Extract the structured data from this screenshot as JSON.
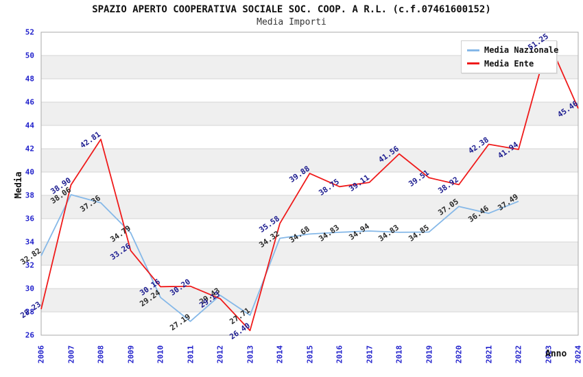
{
  "title": "SPAZIO APERTO COOPERATIVA SOCIALE SOC. COOP. A R.L. (c.f.07461600152)",
  "subtitle": "Media Importi",
  "chart_data": {
    "type": "line",
    "x": [
      2006,
      2007,
      2008,
      2009,
      2010,
      2011,
      2012,
      2013,
      2014,
      2015,
      2016,
      2017,
      2018,
      2019,
      2020,
      2021,
      2022,
      2023,
      2024
    ],
    "xlabel": "Anno",
    "ylabel": "Media",
    "ylim": [
      26,
      52
    ],
    "ytick_step": 2,
    "grid": "horizontal",
    "legend_position": "top-right",
    "series": [
      {
        "name": "Media Nazionale",
        "color": "#85b8e8",
        "label_color": "#2a2a2a",
        "values": [
          32.82,
          38.06,
          37.36,
          34.79,
          29.24,
          27.19,
          29.43,
          27.71,
          34.32,
          34.68,
          34.83,
          34.94,
          34.83,
          34.85,
          37.05,
          36.46,
          37.49,
          null,
          null
        ]
      },
      {
        "name": "Media Ente",
        "color": "#ef1a1a",
        "label_color": "#1b1b8f",
        "values": [
          28.23,
          38.9,
          42.81,
          33.26,
          30.16,
          30.2,
          29.13,
          26.4,
          35.58,
          39.88,
          38.75,
          39.11,
          41.56,
          39.51,
          38.92,
          42.38,
          41.94,
          51.25,
          45.46
        ]
      }
    ],
    "colors": {
      "axis_text": "#2222cc",
      "grid_line": "#d4d4d4",
      "band": "#efefef",
      "plot_border": "#aaaaaa"
    }
  }
}
